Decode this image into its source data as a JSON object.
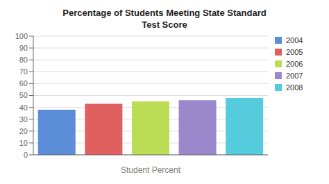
{
  "chart_data": {
    "type": "bar",
    "title": "Percentage of Students Meeting State Standard\nTest Score",
    "xlabel": "Student Percent",
    "categories": [
      "2004",
      "2005",
      "2006",
      "2007",
      "2008"
    ],
    "values": [
      38,
      43,
      45,
      46,
      48
    ],
    "colors": [
      "#5B8DD9",
      "#E06060",
      "#BBDD55",
      "#9B88CC",
      "#55CCDD"
    ],
    "ylim": [
      0,
      100
    ],
    "yticks": [
      0,
      10,
      20,
      30,
      40,
      50,
      60,
      70,
      80,
      90,
      100
    ],
    "grid": true,
    "legend": "right",
    "tick_labels": "y"
  }
}
